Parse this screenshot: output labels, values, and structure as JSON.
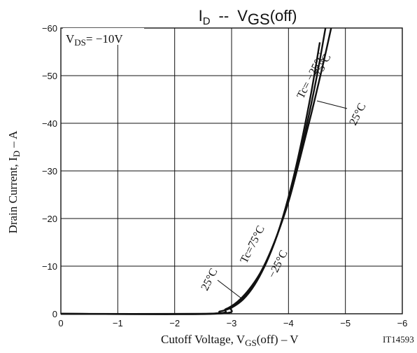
{
  "chart_data": {
    "type": "line",
    "title": {
      "main": "I",
      "main_sub": "D",
      "sep": "--",
      "right": "V",
      "right_sub": "GS",
      "right_tail": "(off)"
    },
    "condition": {
      "text": "V",
      "sub": "DS",
      "tail": "= −10V"
    },
    "ylabel": {
      "pre": "Drain Current, I",
      "sub": "D",
      "post": " – A"
    },
    "xlabel": {
      "pre": "Cutoff Voltage, V",
      "sub": "GS",
      "post": "(off) – V"
    },
    "code": "IT14593",
    "xlim": [
      0,
      -6
    ],
    "ylim": [
      0,
      -60
    ],
    "xticks": [
      0,
      -1,
      -2,
      -3,
      -4,
      -5,
      -6
    ],
    "yticks": [
      0,
      -10,
      -20,
      -30,
      -40,
      -50,
      -60
    ],
    "xtick_labels": [
      "0",
      "−1",
      "−2",
      "−3",
      "−4",
      "−5",
      "−6"
    ],
    "ytick_labels": [
      "0",
      "−10",
      "−20",
      "−30",
      "−40",
      "−50",
      "−60"
    ],
    "grid": true,
    "series": [
      {
        "name": "Tc= −25°C",
        "x": [
          0,
          -2.5,
          -2.8,
          -3.0,
          -3.2,
          -3.4,
          -3.6,
          -3.8,
          -4.0,
          -4.2,
          -4.4,
          -4.6,
          -4.75
        ],
        "y": [
          0,
          0,
          -0.5,
          -1.3,
          -3.0,
          -6.0,
          -10.5,
          -16.5,
          -23.5,
          -32.5,
          -42.0,
          -52.0,
          -60.0
        ]
      },
      {
        "name": "75°C",
        "x": [
          0,
          -2.6,
          -2.9,
          -3.1,
          -3.3,
          -3.5,
          -3.7,
          -3.9,
          -4.1,
          -4.3,
          -4.5,
          -4.65
        ],
        "y": [
          0,
          0,
          -1.0,
          -2.5,
          -5.0,
          -8.5,
          -13.5,
          -20.0,
          -28.5,
          -38.5,
          -50.0,
          -60.0
        ]
      },
      {
        "name": "25°C",
        "x": [
          0,
          -2.7,
          -3.0,
          -3.2,
          -3.4,
          -3.6,
          -3.8,
          -4.0,
          -4.2,
          -4.4,
          -4.55
        ],
        "y": [
          0,
          0,
          -1.3,
          -3.3,
          -6.3,
          -10.5,
          -16.5,
          -24.5,
          -34.5,
          -46.5,
          -57.0
        ]
      }
    ],
    "annotations": {
      "upper_tc": "Tc= −25°C",
      "upper_75": "75°C",
      "upper_25": "25°C",
      "lower_tc": "Tc=75°C",
      "lower_25": "25°C",
      "lower_m25": "−25°C"
    }
  }
}
